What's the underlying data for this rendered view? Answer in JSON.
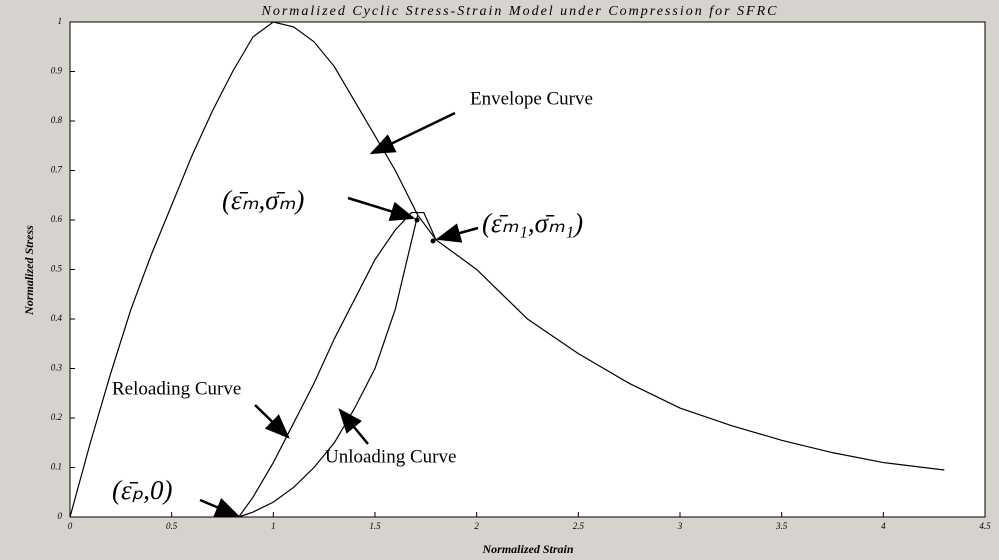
{
  "chart_data": {
    "type": "line",
    "title": "Normalized Cyclic Stress-Strain Model under Compression for SFRC",
    "x_label": "Normalized Strain",
    "y_label": "Normalized Stress",
    "xlim": [
      0,
      4.5
    ],
    "ylim": [
      0,
      1
    ],
    "xticks": [
      0,
      0.5,
      1,
      1.5,
      2,
      2.5,
      3,
      3.5,
      4,
      4.5
    ],
    "yticks": [
      0,
      0.1,
      0.2,
      0.3,
      0.4,
      0.5,
      0.6,
      0.7,
      0.8,
      0.9,
      1
    ],
    "grid": false,
    "series": [
      {
        "color": "#000000",
        "x": [
          0,
          0.1,
          0.2,
          0.3,
          0.4,
          0.5,
          0.6,
          0.7,
          0.8,
          0.9,
          1.0,
          1.1,
          1.2,
          1.3,
          1.4,
          1.5,
          1.6,
          1.71,
          1.8,
          1.9,
          2.0,
          2.25,
          2.5,
          2.75,
          3.0,
          3.25,
          3.5,
          3.75,
          4.0,
          4.3
        ],
        "values": [
          0,
          0.15,
          0.29,
          0.42,
          0.53,
          0.63,
          0.73,
          0.82,
          0.9,
          0.97,
          1.0,
          0.99,
          0.96,
          0.91,
          0.84,
          0.77,
          0.7,
          0.61,
          0.56,
          0.53,
          0.5,
          0.4,
          0.33,
          0.27,
          0.22,
          0.185,
          0.155,
          0.13,
          0.11,
          0.095
        ]
      },
      {
        "color": "#000000",
        "x": [
          0.83,
          0.9,
          1.0,
          1.1,
          1.2,
          1.3,
          1.4,
          1.5,
          1.6,
          1.68,
          1.74,
          1.8
        ],
        "values": [
          0,
          0.04,
          0.11,
          0.19,
          0.27,
          0.36,
          0.44,
          0.52,
          0.58,
          0.615,
          0.615,
          0.56
        ]
      },
      {
        "color": "#000000",
        "x": [
          0.83,
          0.9,
          1.0,
          1.1,
          1.2,
          1.3,
          1.4,
          1.5,
          1.6,
          1.71
        ],
        "values": [
          0,
          0.01,
          0.03,
          0.06,
          0.1,
          0.15,
          0.22,
          0.3,
          0.42,
          0.61
        ]
      }
    ],
    "annotations": [
      "Envelope Curve",
      "(ε̄ₘ,σ̄ₘ)",
      "(ε̄ₘ₁,σ̄ₘ₁)",
      "Reloading Curve",
      "Unloading Curve",
      "(ε̄ₚ,0)"
    ]
  }
}
